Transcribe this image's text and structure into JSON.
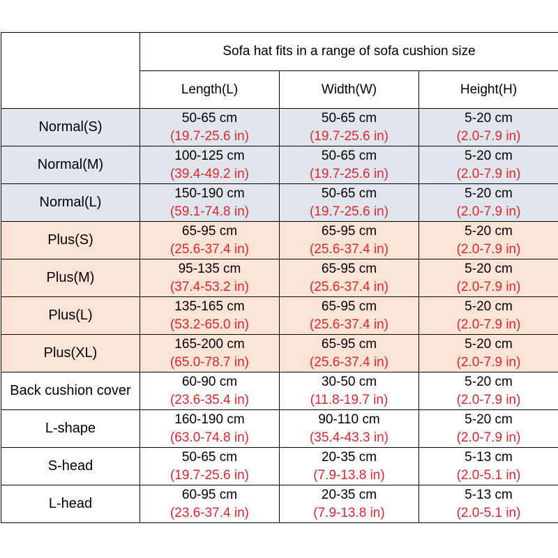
{
  "header": {
    "group_title": "Sofa hat fits in a range of sofa cushion size",
    "columns": [
      "Length(L)",
      "Width(W)",
      "Height(H)"
    ]
  },
  "colors": {
    "normal_band": "#dfe6ee",
    "plus_band": "#fbe4d5",
    "inch_text": "#e3262d",
    "border": "#000000"
  },
  "rows": [
    {
      "name": "Normal(S)",
      "group": "normal",
      "length": {
        "cm": "50-65 cm",
        "in": "(19.7-25.6 in)"
      },
      "width": {
        "cm": "50-65 cm",
        "in": "(19.7-25.6 in)"
      },
      "height": {
        "cm": "5-20 cm",
        "in": "(2.0-7.9 in)"
      }
    },
    {
      "name": "Normal(M)",
      "group": "normal",
      "length": {
        "cm": "100-125 cm",
        "in": "(39.4-49.2 in)"
      },
      "width": {
        "cm": "50-65 cm",
        "in": "(19.7-25.6 in)"
      },
      "height": {
        "cm": "5-20 cm",
        "in": "(2.0-7.9 in)"
      }
    },
    {
      "name": "Normal(L)",
      "group": "normal",
      "length": {
        "cm": "150-190 cm",
        "in": "(59.1-74.8 in)"
      },
      "width": {
        "cm": "50-65 cm",
        "in": "(19.7-25.6 in)"
      },
      "height": {
        "cm": "5-20 cm",
        "in": "(2.0-7.9 in)"
      }
    },
    {
      "name": "Plus(S)",
      "group": "plus",
      "length": {
        "cm": "65-95 cm",
        "in": "(25.6-37.4 in)"
      },
      "width": {
        "cm": "65-95 cm",
        "in": "(25.6-37.4 in)"
      },
      "height": {
        "cm": "5-20 cm",
        "in": "(2.0-7.9 in)"
      }
    },
    {
      "name": "Plus(M)",
      "group": "plus",
      "length": {
        "cm": "95-135 cm",
        "in": "(37.4-53.2 in)"
      },
      "width": {
        "cm": "65-95 cm",
        "in": "(25.6-37.4 in)"
      },
      "height": {
        "cm": "5-20 cm",
        "in": "(2.0-7.9 in)"
      }
    },
    {
      "name": "Plus(L)",
      "group": "plus",
      "length": {
        "cm": "135-165 cm",
        "in": "(53.2-65.0 in)"
      },
      "width": {
        "cm": "65-95 cm",
        "in": "(25.6-37.4 in)"
      },
      "height": {
        "cm": "5-20 cm",
        "in": "(2.0-7.9 in)"
      }
    },
    {
      "name": "Plus(XL)",
      "group": "plus",
      "length": {
        "cm": "165-200 cm",
        "in": "(65.0-78.7 in)"
      },
      "width": {
        "cm": "65-95 cm",
        "in": "(25.6-37.4 in)"
      },
      "height": {
        "cm": "5-20 cm",
        "in": "(2.0-7.9 in)"
      }
    },
    {
      "name": "Back cushion cover",
      "group": "other",
      "length": {
        "cm": "60-90 cm",
        "in": "(23.6-35.4 in)"
      },
      "width": {
        "cm": "30-50 cm",
        "in": "(11.8-19.7 in)"
      },
      "height": {
        "cm": "5-20 cm",
        "in": "(2.0-7.9 in)"
      }
    },
    {
      "name": "L-shape",
      "group": "other",
      "length": {
        "cm": "160-190 cm",
        "in": "(63.0-74.8 in)"
      },
      "width": {
        "cm": "90-110 cm",
        "in": "(35.4-43.3 in)"
      },
      "height": {
        "cm": "5-20 cm",
        "in": "(2.0-7.9 in)"
      }
    },
    {
      "name": "S-head",
      "group": "other",
      "length": {
        "cm": "50-65 cm",
        "in": "(19.7-25.6 in)"
      },
      "width": {
        "cm": "20-35 cm",
        "in": "(7.9-13.8 in)"
      },
      "height": {
        "cm": "5-13 cm",
        "in": "(2.0-5.1 in)"
      }
    },
    {
      "name": "L-head",
      "group": "other",
      "length": {
        "cm": "60-95 cm",
        "in": "(23.6-37.4 in)"
      },
      "width": {
        "cm": "20-35 cm",
        "in": "(7.9-13.8 in)"
      },
      "height": {
        "cm": "5-13 cm",
        "in": "(2.0-5.1 in)"
      }
    }
  ]
}
